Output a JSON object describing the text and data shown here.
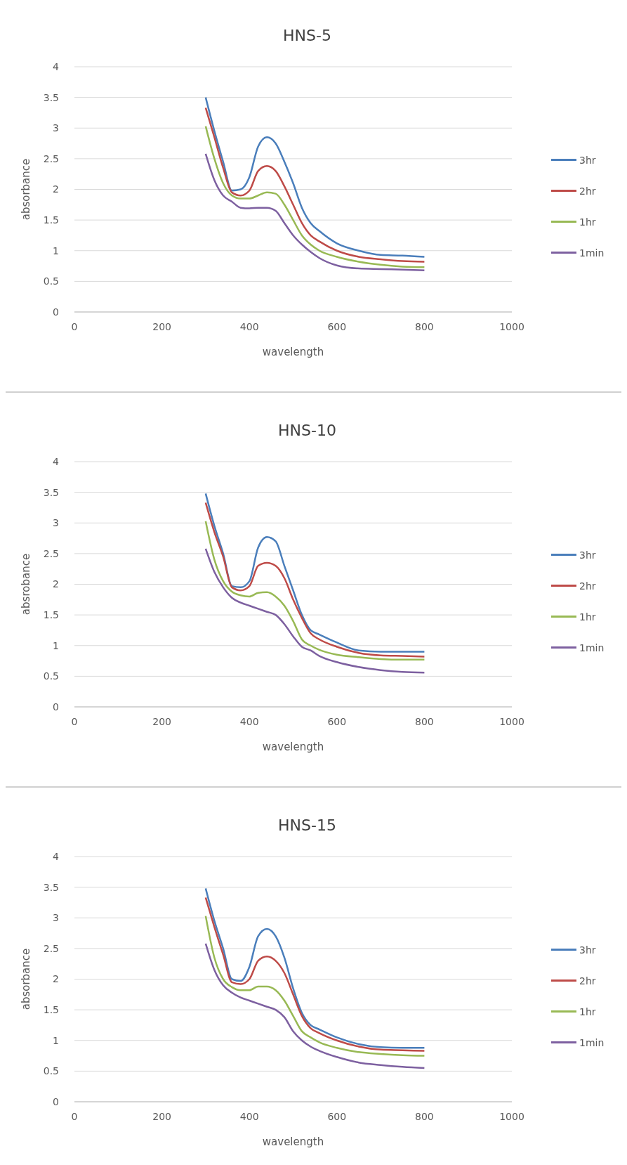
{
  "chart_data": [
    {
      "type": "line",
      "title": "HNS-5",
      "xlabel": "wavelength",
      "ylabel": "absorbance",
      "x": [
        300,
        320,
        340,
        360,
        380,
        400,
        420,
        440,
        460,
        480,
        500,
        520,
        540,
        560,
        600,
        650,
        700,
        750,
        800
      ],
      "xlim": [
        0,
        1000
      ],
      "xticks": [
        0,
        200,
        400,
        600,
        800,
        1000
      ],
      "ylim": [
        0,
        4
      ],
      "yticks": [
        0,
        0.5,
        1,
        1.5,
        2,
        2.5,
        3,
        3.5,
        4
      ],
      "grid": "y",
      "legend": "right",
      "series": [
        {
          "name": "3hr",
          "color": "#4a7ebb",
          "values": [
            3.5,
            2.95,
            2.45,
            1.98,
            2.0,
            2.2,
            2.7,
            2.85,
            2.75,
            2.45,
            2.1,
            1.7,
            1.45,
            1.32,
            1.12,
            1.0,
            0.93,
            0.92,
            0.9
          ]
        },
        {
          "name": "2hr",
          "color": "#be4b48",
          "values": [
            3.33,
            2.85,
            2.35,
            1.95,
            1.9,
            1.98,
            2.3,
            2.38,
            2.3,
            2.05,
            1.75,
            1.45,
            1.25,
            1.15,
            1.0,
            0.9,
            0.86,
            0.83,
            0.82
          ]
        },
        {
          "name": "1hr",
          "color": "#98b954",
          "values": [
            3.03,
            2.5,
            2.1,
            1.9,
            1.85,
            1.85,
            1.9,
            1.95,
            1.93,
            1.75,
            1.5,
            1.25,
            1.1,
            1.0,
            0.9,
            0.82,
            0.77,
            0.74,
            0.73
          ]
        },
        {
          "name": "1min",
          "color": "#7d60a0",
          "values": [
            2.58,
            2.15,
            1.9,
            1.8,
            1.7,
            1.69,
            1.7,
            1.7,
            1.65,
            1.45,
            1.25,
            1.1,
            0.98,
            0.88,
            0.76,
            0.71,
            0.7,
            0.69,
            0.68
          ]
        }
      ]
    },
    {
      "type": "line",
      "title": "HNS-10",
      "xlabel": "wavelength",
      "ylabel": "absrobance",
      "x": [
        300,
        320,
        340,
        360,
        380,
        400,
        420,
        440,
        460,
        480,
        500,
        520,
        540,
        560,
        600,
        650,
        700,
        750,
        800
      ],
      "xlim": [
        0,
        1000
      ],
      "xticks": [
        0,
        200,
        400,
        600,
        800,
        1000
      ],
      "ylim": [
        0,
        4
      ],
      "yticks": [
        0,
        0.5,
        1,
        1.5,
        2,
        2.5,
        3,
        3.5,
        4
      ],
      "grid": "y",
      "legend": "right",
      "series": [
        {
          "name": "3hr",
          "color": "#4a7ebb",
          "values": [
            3.48,
            2.95,
            2.5,
            1.97,
            1.95,
            2.05,
            2.6,
            2.77,
            2.7,
            2.3,
            1.9,
            1.5,
            1.25,
            1.18,
            1.05,
            0.92,
            0.9,
            0.9,
            0.9
          ]
        },
        {
          "name": "2hr",
          "color": "#be4b48",
          "values": [
            3.33,
            2.85,
            2.45,
            1.95,
            1.9,
            1.97,
            2.3,
            2.35,
            2.3,
            2.1,
            1.75,
            1.45,
            1.2,
            1.1,
            0.98,
            0.88,
            0.84,
            0.83,
            0.82
          ]
        },
        {
          "name": "1hr",
          "color": "#98b954",
          "values": [
            3.03,
            2.4,
            2.05,
            1.88,
            1.82,
            1.8,
            1.86,
            1.87,
            1.8,
            1.65,
            1.4,
            1.1,
            1.0,
            0.93,
            0.85,
            0.81,
            0.78,
            0.77,
            0.77
          ]
        },
        {
          "name": "1min",
          "color": "#7d60a0",
          "values": [
            2.58,
            2.2,
            1.95,
            1.78,
            1.7,
            1.65,
            1.6,
            1.55,
            1.5,
            1.35,
            1.15,
            0.98,
            0.92,
            0.83,
            0.73,
            0.65,
            0.6,
            0.57,
            0.56
          ]
        }
      ]
    },
    {
      "type": "line",
      "title": "HNS-15",
      "xlabel": "wavelength",
      "ylabel": "absorbance",
      "x": [
        300,
        320,
        340,
        360,
        380,
        400,
        420,
        440,
        460,
        480,
        500,
        520,
        540,
        560,
        600,
        650,
        700,
        750,
        800
      ],
      "xlim": [
        0,
        1000
      ],
      "xticks": [
        0,
        200,
        400,
        600,
        800,
        1000
      ],
      "ylim": [
        0,
        4
      ],
      "yticks": [
        0,
        0.5,
        1,
        1.5,
        2,
        2.5,
        3,
        3.5,
        4
      ],
      "grid": "y",
      "legend": "right",
      "series": [
        {
          "name": "3hr",
          "color": "#4a7ebb",
          "values": [
            3.48,
            2.95,
            2.5,
            2.0,
            1.97,
            2.2,
            2.7,
            2.82,
            2.7,
            2.35,
            1.85,
            1.45,
            1.25,
            1.18,
            1.05,
            0.94,
            0.89,
            0.88,
            0.88
          ]
        },
        {
          "name": "2hr",
          "color": "#be4b48",
          "values": [
            3.33,
            2.85,
            2.4,
            1.95,
            1.92,
            2.0,
            2.3,
            2.37,
            2.3,
            2.1,
            1.75,
            1.4,
            1.2,
            1.12,
            1.0,
            0.9,
            0.85,
            0.84,
            0.83
          ]
        },
        {
          "name": "1hr",
          "color": "#98b954",
          "values": [
            3.03,
            2.35,
            2.0,
            1.87,
            1.82,
            1.82,
            1.88,
            1.88,
            1.82,
            1.65,
            1.4,
            1.15,
            1.05,
            0.97,
            0.88,
            0.81,
            0.78,
            0.76,
            0.75
          ]
        },
        {
          "name": "1min",
          "color": "#7d60a0",
          "values": [
            2.58,
            2.15,
            1.9,
            1.78,
            1.7,
            1.65,
            1.6,
            1.55,
            1.5,
            1.38,
            1.15,
            1.0,
            0.9,
            0.83,
            0.73,
            0.64,
            0.6,
            0.57,
            0.55
          ]
        }
      ]
    }
  ]
}
